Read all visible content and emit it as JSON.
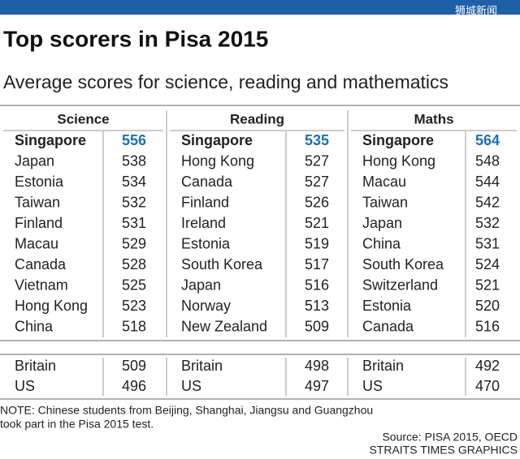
{
  "watermark": "狮城新闻",
  "title": "Top scorers in Pisa 2015",
  "subtitle": "Average scores for science, reading and mathematics",
  "columns": [
    {
      "header": "Science",
      "rows": [
        [
          "Singapore",
          556
        ],
        [
          "Japan",
          538
        ],
        [
          "Estonia",
          534
        ],
        [
          "Taiwan",
          532
        ],
        [
          "Finland",
          531
        ],
        [
          "Macau",
          529
        ],
        [
          "Canada",
          528
        ],
        [
          "Vietnam",
          525
        ],
        [
          "Hong Kong",
          523
        ],
        [
          "China",
          518
        ]
      ],
      "comparison": [
        [
          "Britain",
          509
        ],
        [
          "US",
          496
        ]
      ]
    },
    {
      "header": "Reading",
      "rows": [
        [
          "Singapore",
          535
        ],
        [
          "Hong Kong",
          527
        ],
        [
          "Canada",
          527
        ],
        [
          "Finland",
          526
        ],
        [
          "Ireland",
          521
        ],
        [
          "Estonia",
          519
        ],
        [
          "South Korea",
          517
        ],
        [
          "Japan",
          516
        ],
        [
          "Norway",
          513
        ],
        [
          "New Zealand",
          509
        ]
      ],
      "comparison": [
        [
          "Britain",
          498
        ],
        [
          "US",
          497
        ]
      ]
    },
    {
      "header": "Maths",
      "rows": [
        [
          "Singapore",
          564
        ],
        [
          "Hong Kong",
          548
        ],
        [
          "Macau",
          544
        ],
        [
          "Taiwan",
          542
        ],
        [
          "Japan",
          532
        ],
        [
          "China",
          531
        ],
        [
          "South Korea",
          524
        ],
        [
          "Switzerland",
          521
        ],
        [
          "Estonia",
          520
        ],
        [
          "Canada",
          516
        ]
      ],
      "comparison": [
        [
          "Britain",
          492
        ],
        [
          "US",
          470
        ]
      ]
    }
  ],
  "note": [
    "NOTE: Chinese students from Beijing, Shanghai, Jiangsu and Guangzhou",
    "took part in the Pisa 2015 test."
  ],
  "source": "Source: PISA 2015, OECD",
  "credit": "STRAITS TIMES GRAPHICS"
}
